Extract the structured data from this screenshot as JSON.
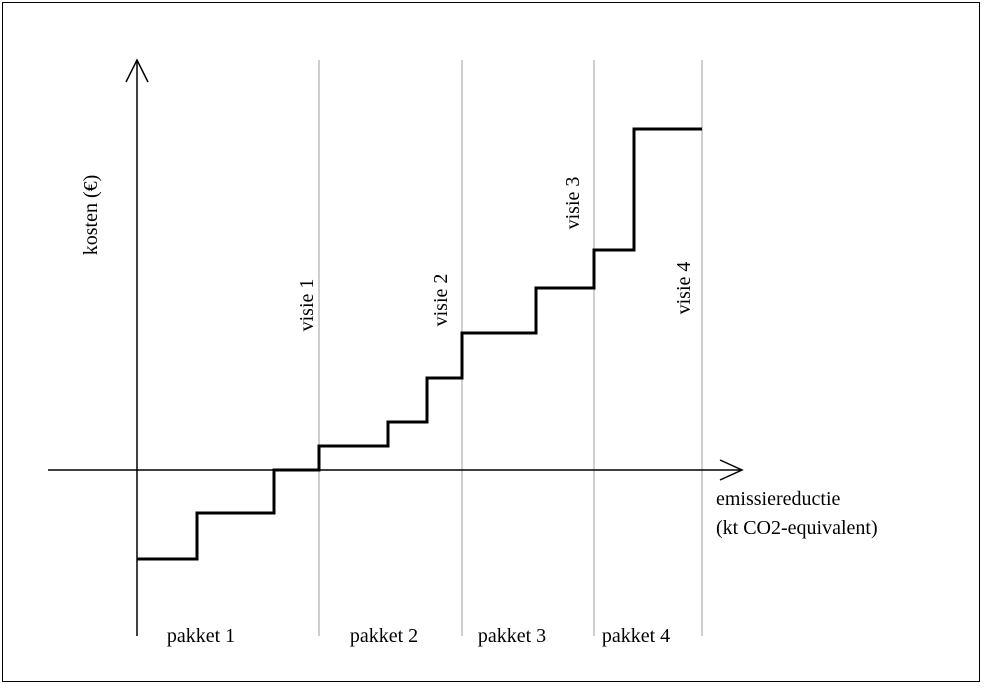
{
  "diagram": {
    "y_axis_label": "kosten (€)",
    "x_axis_label_line1": "emissiereductie",
    "x_axis_label_line2": "(kt CO2-equivalent)",
    "visions": [
      "visie 1",
      "visie 2",
      "visie 3",
      "visie 4"
    ],
    "packages": [
      "pakket 1",
      "pakket 2",
      "pakket 3",
      "pakket 4"
    ],
    "colors": {
      "line": "#000000",
      "divider": "#bfbfbf"
    }
  }
}
